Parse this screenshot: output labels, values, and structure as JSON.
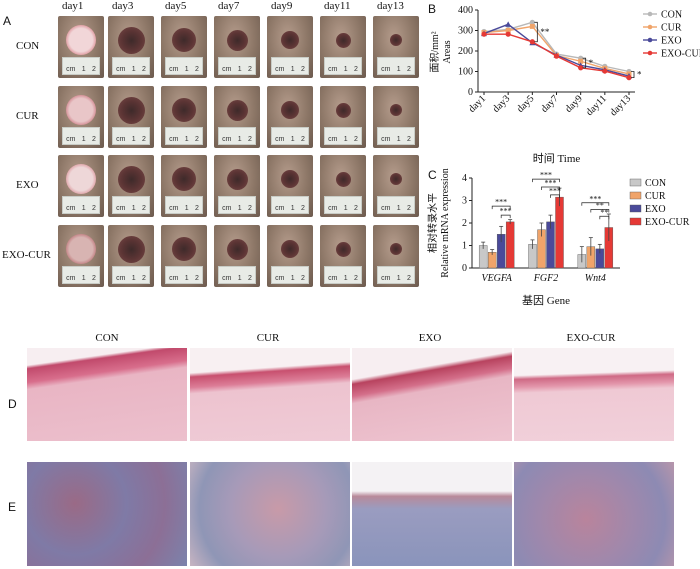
{
  "panelA": {
    "letter": "A",
    "days": [
      "day1",
      "day3",
      "day5",
      "day7",
      "day9",
      "day11",
      "day13"
    ],
    "groups": [
      "CON",
      "CUR",
      "EXO",
      "EXO-CUR"
    ],
    "ruler_marks": [
      "cm",
      "1",
      "2"
    ]
  },
  "panelB": {
    "letter": "B",
    "ylabel_cn": "面积/mm²",
    "ylabel_en": "Areas",
    "xlabel": "时间 Time",
    "sig_marks": [
      "**",
      "*",
      "*"
    ]
  },
  "panelC": {
    "letter": "C",
    "ylabel_cn": "相对转录水平",
    "ylabel_en": "Relative mRNA expression",
    "xlabel": "基因 Gene",
    "sig_marks": [
      "***",
      "***",
      "***",
      "***",
      "***",
      "***",
      "**",
      "**"
    ]
  },
  "panelD": {
    "letter": "D",
    "titles": [
      "CON",
      "CUR",
      "EXO",
      "EXO-CUR"
    ]
  },
  "panelE": {
    "letter": "E"
  },
  "chart_data": [
    {
      "type": "line",
      "x": [
        "day1",
        "day3",
        "day5",
        "day7",
        "day9",
        "day11",
        "day13"
      ],
      "ylim": [
        0,
        400
      ],
      "yticks": [
        0,
        100,
        200,
        300,
        400
      ],
      "legend_position": "top-right",
      "series": [
        {
          "name": "CON",
          "color": "#b8b8b8",
          "marker": "circle",
          "values": [
            295,
            305,
            340,
            185,
            165,
            125,
            100
          ]
        },
        {
          "name": "CUR",
          "color": "#f0a46a",
          "marker": "square",
          "values": [
            290,
            300,
            320,
            178,
            150,
            115,
            88
          ]
        },
        {
          "name": "EXO",
          "color": "#4a4a9a",
          "marker": "triangle",
          "values": [
            285,
            330,
            240,
            180,
            130,
            108,
            78
          ]
        },
        {
          "name": "EXO-CUR",
          "color": "#e53935",
          "marker": "circle",
          "values": [
            282,
            282,
            245,
            175,
            118,
            102,
            70
          ]
        }
      ]
    },
    {
      "type": "bar",
      "categories": [
        "VEGFA",
        "FGF2",
        "Wnt4"
      ],
      "ylim": [
        0,
        4
      ],
      "yticks": [
        0,
        1,
        2,
        3,
        4
      ],
      "legend_position": "top-right",
      "series": [
        {
          "name": "CON",
          "color": "#c8c8c8",
          "values": [
            1.0,
            1.05,
            0.6
          ],
          "errors": [
            0.15,
            0.2,
            0.35
          ]
        },
        {
          "name": "CUR",
          "color": "#f0a46a",
          "values": [
            0.7,
            1.7,
            0.95
          ],
          "errors": [
            0.12,
            0.3,
            0.4
          ]
        },
        {
          "name": "EXO",
          "color": "#4a4a9a",
          "values": [
            1.5,
            2.05,
            0.85
          ],
          "errors": [
            0.35,
            0.3,
            0.2
          ]
        },
        {
          "name": "EXO-CUR",
          "color": "#e53935",
          "values": [
            2.05,
            3.15,
            1.8
          ],
          "errors": [
            0.1,
            0.4,
            0.6
          ]
        }
      ]
    }
  ]
}
